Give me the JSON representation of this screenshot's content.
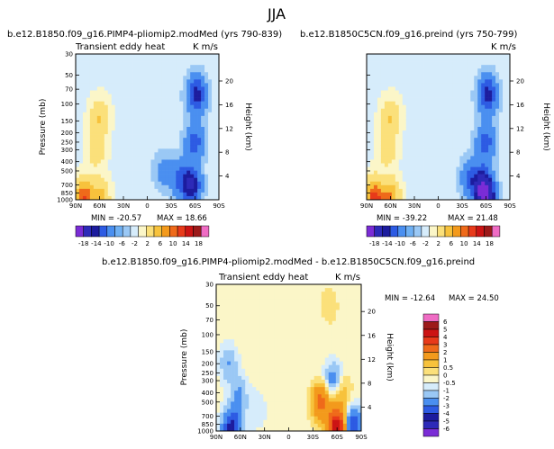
{
  "figure": {
    "title": "JJA"
  },
  "chart_data": [
    {
      "type": "heatmap",
      "title": "b.e12.B1850.f09_g16.PIMP4-pliomip2.modMed (yrs 790-839)",
      "subtitle": "Transient eddy heat",
      "units": "K m/s",
      "xlabel": "",
      "ylabel": "Pressure (mb)",
      "y2label": "Height (km)",
      "x_ticklabels": [
        "90N",
        "60N",
        "30N",
        "0",
        "30S",
        "60S",
        "90S"
      ],
      "y_ticklabels": [
        "30",
        "50",
        "70",
        "100",
        "150",
        "200",
        "250",
        "300",
        "400",
        "500",
        "700",
        "850",
        "1000"
      ],
      "y2_ticklabels": [
        "20",
        "16",
        "12",
        "8",
        "4"
      ],
      "min_label": "MIN = -20.57",
      "max_label": "MAX = 18.66",
      "min": -20.57,
      "max": 18.66,
      "colorbar_ticklabels": [
        "-18",
        "-14",
        "-10",
        "-6",
        "-2",
        "2",
        "6",
        "10",
        "14",
        "18"
      ],
      "features": [
        {
          "lat": 60,
          "p": 140,
          "v": 6
        },
        {
          "lat": 64,
          "p": 300,
          "v": 4
        },
        {
          "lat": 80,
          "p": 960,
          "v": 14
        },
        {
          "lat": 60,
          "p": 960,
          "v": 8
        },
        {
          "lat": -62,
          "p": 80,
          "v": -12
        },
        {
          "lat": -60,
          "p": 250,
          "v": -8
        },
        {
          "lat": -55,
          "p": 700,
          "v": -15
        },
        {
          "lat": -40,
          "p": 600,
          "v": -6
        },
        {
          "lat": -20,
          "p": 500,
          "v": -3
        }
      ]
    },
    {
      "type": "heatmap",
      "title": "b.e12.B1850C5CN.f09_g16.preind (yrs 750-799)",
      "subtitle": "",
      "units": "K m/s",
      "xlabel": "",
      "ylabel": "",
      "y2label": "Height (km)",
      "x_ticklabels": [
        "90N",
        "60N",
        "30N",
        "0",
        "30S",
        "60S",
        "90S"
      ],
      "y_ticklabels": [],
      "y2_ticklabels": [
        "20",
        "16",
        "12",
        "8",
        "4"
      ],
      "min_label": "MIN = -39.22",
      "max_label": "MAX = 21.48",
      "min": -39.22,
      "max": 21.48,
      "colorbar_ticklabels": [
        "-18",
        "-14",
        "-10",
        "-6",
        "-2",
        "2",
        "6",
        "10",
        "14",
        "18"
      ],
      "features": [
        {
          "lat": 60,
          "p": 140,
          "v": 6
        },
        {
          "lat": 64,
          "p": 300,
          "v": 4
        },
        {
          "lat": 80,
          "p": 960,
          "v": 16
        },
        {
          "lat": 60,
          "p": 960,
          "v": 10
        },
        {
          "lat": -62,
          "p": 80,
          "v": -12
        },
        {
          "lat": -60,
          "p": 250,
          "v": -8
        },
        {
          "lat": -55,
          "p": 700,
          "v": -15
        },
        {
          "lat": -60,
          "p": 960,
          "v": -20
        },
        {
          "lat": -40,
          "p": 600,
          "v": -6
        }
      ]
    },
    {
      "type": "heatmap",
      "title": "b.e12.B1850.f09_g16.PIMP4-pliomip2.modMed - b.e12.B1850C5CN.f09_g16.preind",
      "subtitle": "Transient eddy heat",
      "units": "K m/s",
      "xlabel": "",
      "ylabel": "Pressure (mb)",
      "y2label": "Height (km)",
      "x_ticklabels": [
        "90N",
        "60N",
        "30N",
        "0",
        "30S",
        "60S",
        "90S"
      ],
      "y_ticklabels": [
        "30",
        "50",
        "70",
        "100",
        "150",
        "200",
        "250",
        "300",
        "400",
        "500",
        "700",
        "850",
        "1000"
      ],
      "y2_ticklabels": [
        "20",
        "16",
        "12",
        "8",
        "4"
      ],
      "min_label": "MIN = -12.64",
      "max_label": "MAX = 24.50",
      "min": -12.64,
      "max": 24.5,
      "colorbar_ticklabels": [
        "6",
        "5",
        "4",
        "3",
        "2",
        "1",
        "0.5",
        "0",
        "-0.5",
        "-1",
        "-2",
        "-3",
        "-4",
        "-5",
        "-6"
      ],
      "features": [
        {
          "lat": 75,
          "p": 200,
          "v": -1
        },
        {
          "lat": 62,
          "p": 400,
          "v": -1
        },
        {
          "lat": 65,
          "p": 800,
          "v": -1
        },
        {
          "lat": 72,
          "p": 960,
          "v": -3
        },
        {
          "lat": 40,
          "p": 600,
          "v": -0.5
        },
        {
          "lat": -50,
          "p": 50,
          "v": 0.4
        },
        {
          "lat": -40,
          "p": 500,
          "v": 2.5
        },
        {
          "lat": -55,
          "p": 300,
          "v": -1.5
        },
        {
          "lat": -65,
          "p": 400,
          "v": 1
        },
        {
          "lat": -60,
          "p": 930,
          "v": 5
        },
        {
          "lat": -80,
          "p": 900,
          "v": -3
        }
      ]
    }
  ]
}
